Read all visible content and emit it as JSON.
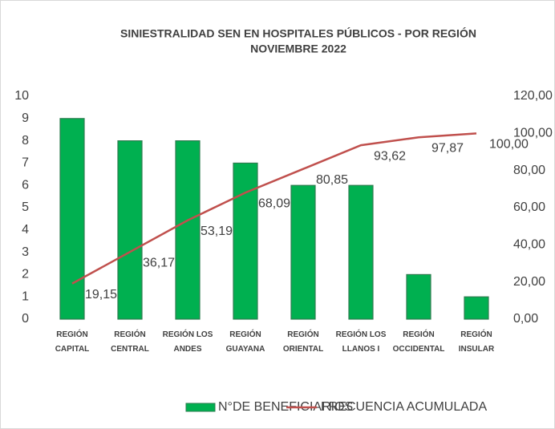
{
  "chart_data": {
    "type": "pareto",
    "title": "SINIESTRALIDAD SEN EN HOSPITALES PÚBLICOS - POR REGIÓN",
    "subtitle": "NOVIEMBRE 2022",
    "categories": [
      "REGIÓN\nCAPITAL",
      "REGIÓN\nCENTRAL",
      "REGIÓN LOS\nANDES",
      "REGIÓN\nGUAYANA",
      "REGIÓN\nORIENTAL",
      "REGIÓN LOS\nLLANOS I",
      "REGIÓN\nOCCIDENTAL",
      "REGIÓN\nINSULAR"
    ],
    "series": [
      {
        "name": "N°DE BENEFICIARIOS",
        "color": "#00b050",
        "values": [
          9,
          8,
          8,
          7,
          6,
          6,
          2,
          1
        ]
      },
      {
        "name": "FRECUENCIA ACUMULADA",
        "color": "#c0504d",
        "axis": "y2",
        "values": [
          19.15,
          36.17,
          53.19,
          68.09,
          80.85,
          93.62,
          97.87,
          100.0
        ],
        "value_labels": [
          "19,15",
          "36,17",
          "53,19",
          "68,09",
          "80,85",
          "93,62",
          "97,87",
          "100,00"
        ]
      }
    ],
    "ylim": [
      0,
      10
    ],
    "yticks": [
      0,
      1,
      2,
      3,
      4,
      5,
      6,
      7,
      8,
      9,
      10
    ],
    "y2lim": [
      0,
      120
    ],
    "y2ticks": [
      {
        "value": 0,
        "label": "0,00"
      },
      {
        "value": 20,
        "label": "20,00"
      },
      {
        "value": 40,
        "label": "40,00"
      },
      {
        "value": 60,
        "label": "60,00"
      },
      {
        "value": 80,
        "label": "80,00"
      },
      {
        "value": 100,
        "label": "100,00"
      },
      {
        "value": 120,
        "label": "120,00"
      }
    ],
    "legend": "bottom"
  }
}
